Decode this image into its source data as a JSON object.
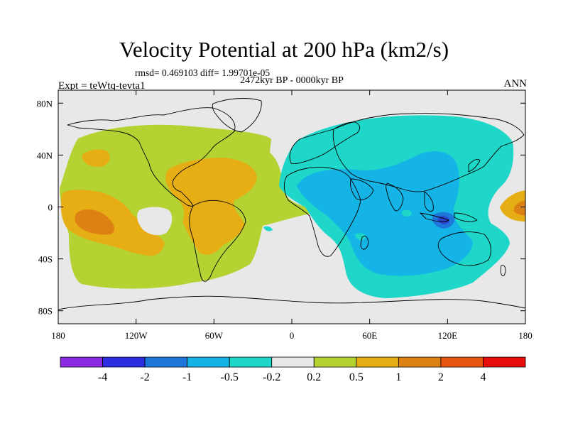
{
  "figure": {
    "title": "Velocity Potential at 200 hPa (km2/s)",
    "stats_line": "rmsd= 0.469103 diff= 1.99701e-05",
    "period": "2472kyr BP - 0000kyr BP",
    "experiment": "Expt = teWtq-tevta1",
    "season": "ANN"
  },
  "map": {
    "projection": "cylindrical-equidistant",
    "lon_range": [
      -180,
      180
    ],
    "lat_range": [
      -90,
      90
    ],
    "x_ticks": [
      {
        "value": -180,
        "label": "180"
      },
      {
        "value": -120,
        "label": "120W"
      },
      {
        "value": -60,
        "label": "60W"
      },
      {
        "value": 0,
        "label": "0"
      },
      {
        "value": 60,
        "label": "60E"
      },
      {
        "value": 120,
        "label": "120E"
      },
      {
        "value": 180,
        "label": "180"
      }
    ],
    "y_ticks": [
      {
        "value": 80,
        "label": "80N"
      },
      {
        "value": 40,
        "label": "40N"
      },
      {
        "value": 0,
        "label": "0"
      },
      {
        "value": -40,
        "label": "40S"
      },
      {
        "value": -80,
        "label": "80S"
      }
    ],
    "background_color": "#e8e8e8",
    "colors": {
      "green": "#b4d232",
      "orange_light": "#e6ae14",
      "orange": "#dc8214",
      "red": "#e85510",
      "teal": "#1ed7c8",
      "cyan": "#14b4e6",
      "blue": "#1e78dc",
      "dark_blue": "#2a46cf"
    }
  },
  "colorbar": {
    "colors": [
      "#8a2be2",
      "#2d2de0",
      "#1e78dc",
      "#14b4e6",
      "#1ed7c8",
      "#e8e8e8",
      "#b4d232",
      "#e6ae14",
      "#dc8214",
      "#e85510",
      "#e80d0d"
    ],
    "labels": [
      "-4",
      "-2",
      "-1",
      "-0.5",
      "-0.2",
      "0.2",
      "0.5",
      "1",
      "2",
      "4"
    ]
  }
}
